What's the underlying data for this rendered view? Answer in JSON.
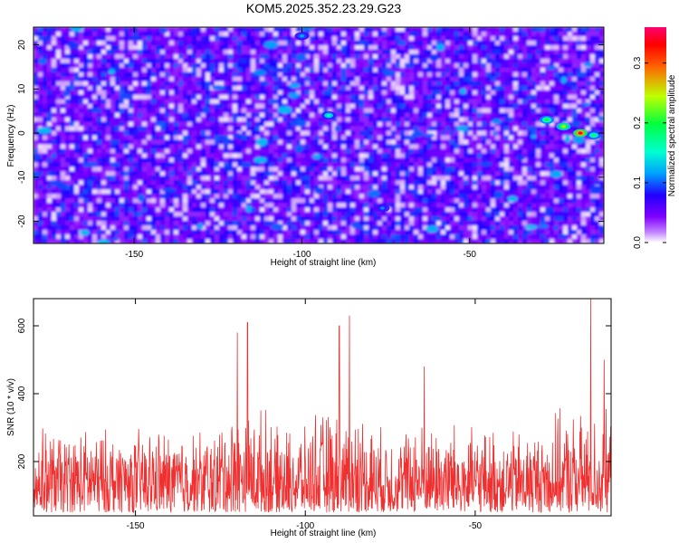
{
  "title": "KOM5.2025.352.23.29.G23",
  "chart_data": [
    {
      "type": "heatmap",
      "title": "KOM5.2025.352.23.29.G23",
      "xlabel": "Height of straight line (km)",
      "ylabel": "Frequency (Hz)",
      "xlim": [
        -180,
        -10
      ],
      "ylim": [
        -25,
        24
      ],
      "xticks": [
        -150,
        -100,
        -50
      ],
      "yticks": [
        -20,
        -10,
        0,
        10,
        20
      ],
      "colorbar": {
        "label": "Normalized spectral amplitude",
        "range": [
          0.0,
          0.36
        ],
        "ticks": [
          0.0,
          0.1,
          0.2,
          0.3
        ],
        "colormap": [
          "#ffffff",
          "#a040ff",
          "#6000e0",
          "#0000ff",
          "#00e0ff",
          "#00ff80",
          "#c0ff00",
          "#ff0000",
          "#ff0080"
        ]
      },
      "hotspots": [
        {
          "x": -92,
          "y": 4,
          "value": 0.16
        },
        {
          "x": -27,
          "y": 3,
          "value": 0.2
        },
        {
          "x": -22,
          "y": 1.5,
          "value": 0.24
        },
        {
          "x": -17,
          "y": 0,
          "value": 0.34
        },
        {
          "x": -13,
          "y": -0.5,
          "value": 0.18
        },
        {
          "x": -100,
          "y": 22,
          "value": 0.12
        },
        {
          "x": -76,
          "y": -17,
          "value": 0.11
        }
      ]
    },
    {
      "type": "line",
      "xlabel": "Height of straight line (km)",
      "ylabel": "SNR (10 * v/v)",
      "xlim": [
        -180,
        -10
      ],
      "ylim": [
        40,
        680
      ],
      "xticks": [
        -150,
        -100,
        -50
      ],
      "yticks": [
        200,
        400,
        600
      ],
      "color": "#f03030",
      "grid": false,
      "peaks": [
        {
          "x": -120,
          "y": 580
        },
        {
          "x": -117,
          "y": 610
        },
        {
          "x": -90,
          "y": 600
        },
        {
          "x": -87,
          "y": 630
        },
        {
          "x": -65,
          "y": 480
        },
        {
          "x": -16,
          "y": 680
        },
        {
          "x": -12,
          "y": 500
        }
      ]
    }
  ]
}
